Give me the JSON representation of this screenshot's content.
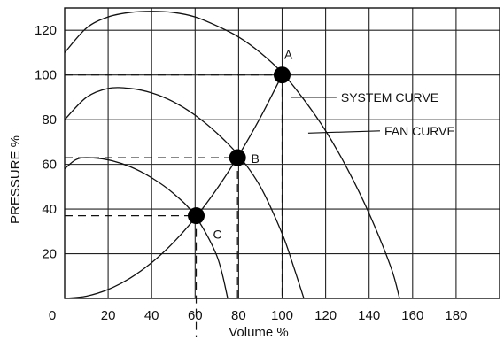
{
  "chart_data": {
    "type": "line",
    "title": "",
    "xlabel": "Volume %",
    "ylabel": "PRESSURE %",
    "xlim": [
      0,
      200
    ],
    "ylim": [
      0,
      130
    ],
    "x_ticks": [
      0,
      20,
      40,
      60,
      80,
      100,
      120,
      140,
      160,
      180
    ],
    "y_ticks": [
      20,
      40,
      60,
      80,
      100,
      120
    ],
    "grid": true,
    "series": [
      {
        "name": "FAN CURVE",
        "x": [
          0,
          10,
          20,
          30,
          40,
          50,
          60,
          70,
          80,
          90,
          100,
          110,
          120,
          130,
          140,
          150,
          154
        ],
        "y": [
          110,
          121,
          126,
          128,
          128.5,
          128,
          126,
          122,
          117,
          110,
          101,
          89,
          75,
          58,
          38,
          14,
          0
        ]
      },
      {
        "x": [
          0,
          10,
          20,
          30,
          40,
          50,
          60,
          70,
          80,
          90,
          100,
          105,
          110
        ],
        "y": [
          80,
          90,
          94,
          94,
          92,
          88,
          82,
          74,
          64,
          50,
          29,
          15,
          0
        ]
      },
      {
        "x": [
          0,
          5,
          10,
          20,
          30,
          40,
          50,
          60,
          70,
          75
        ],
        "y": [
          58,
          62,
          63,
          62,
          59,
          54,
          47,
          37,
          19,
          0
        ]
      },
      {
        "name": "SYSTEM CURVE",
        "x": [
          0,
          10,
          20,
          30,
          40,
          50,
          60,
          70,
          80,
          90,
          100
        ],
        "y": [
          0,
          1,
          4,
          9,
          16,
          25,
          36,
          49,
          64,
          81,
          100
        ]
      }
    ],
    "points": [
      {
        "label": "A",
        "x": 100,
        "y": 100
      },
      {
        "label": "B",
        "x": 79.5,
        "y": 63
      },
      {
        "label": "C",
        "x": 60.5,
        "y": 37
      }
    ],
    "annotations": [
      {
        "text": "SYSTEM CURVE",
        "x": 104,
        "y": 90,
        "lx": 125,
        "ly": 90
      },
      {
        "text": "FAN CURVE",
        "x": 112,
        "y": 74,
        "lx": 145,
        "ly": 75
      }
    ]
  }
}
